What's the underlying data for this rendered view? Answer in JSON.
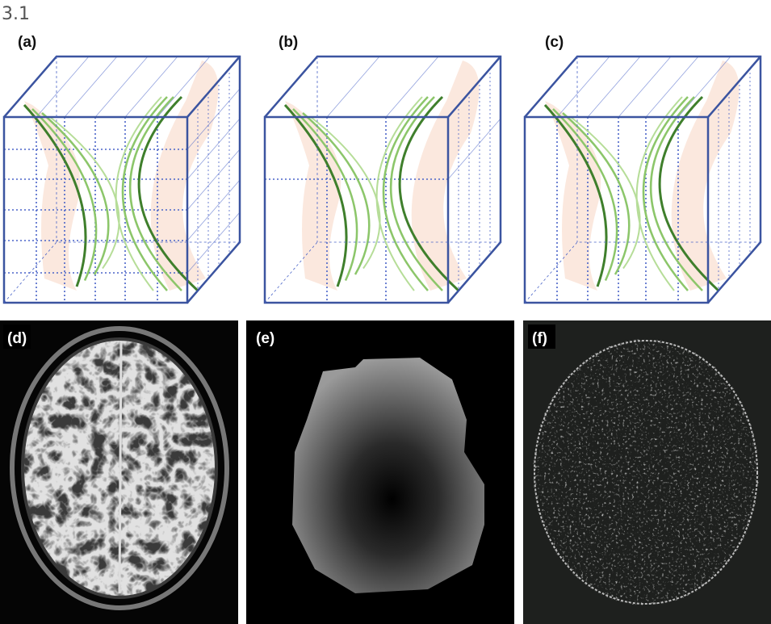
{
  "figure_number": "3.1",
  "panels": [
    {
      "label": "(a)"
    },
    {
      "label": "(b)"
    },
    {
      "label": "(c)"
    },
    {
      "label": "(d)"
    },
    {
      "label": "(e)"
    },
    {
      "label": "(f)"
    }
  ]
}
